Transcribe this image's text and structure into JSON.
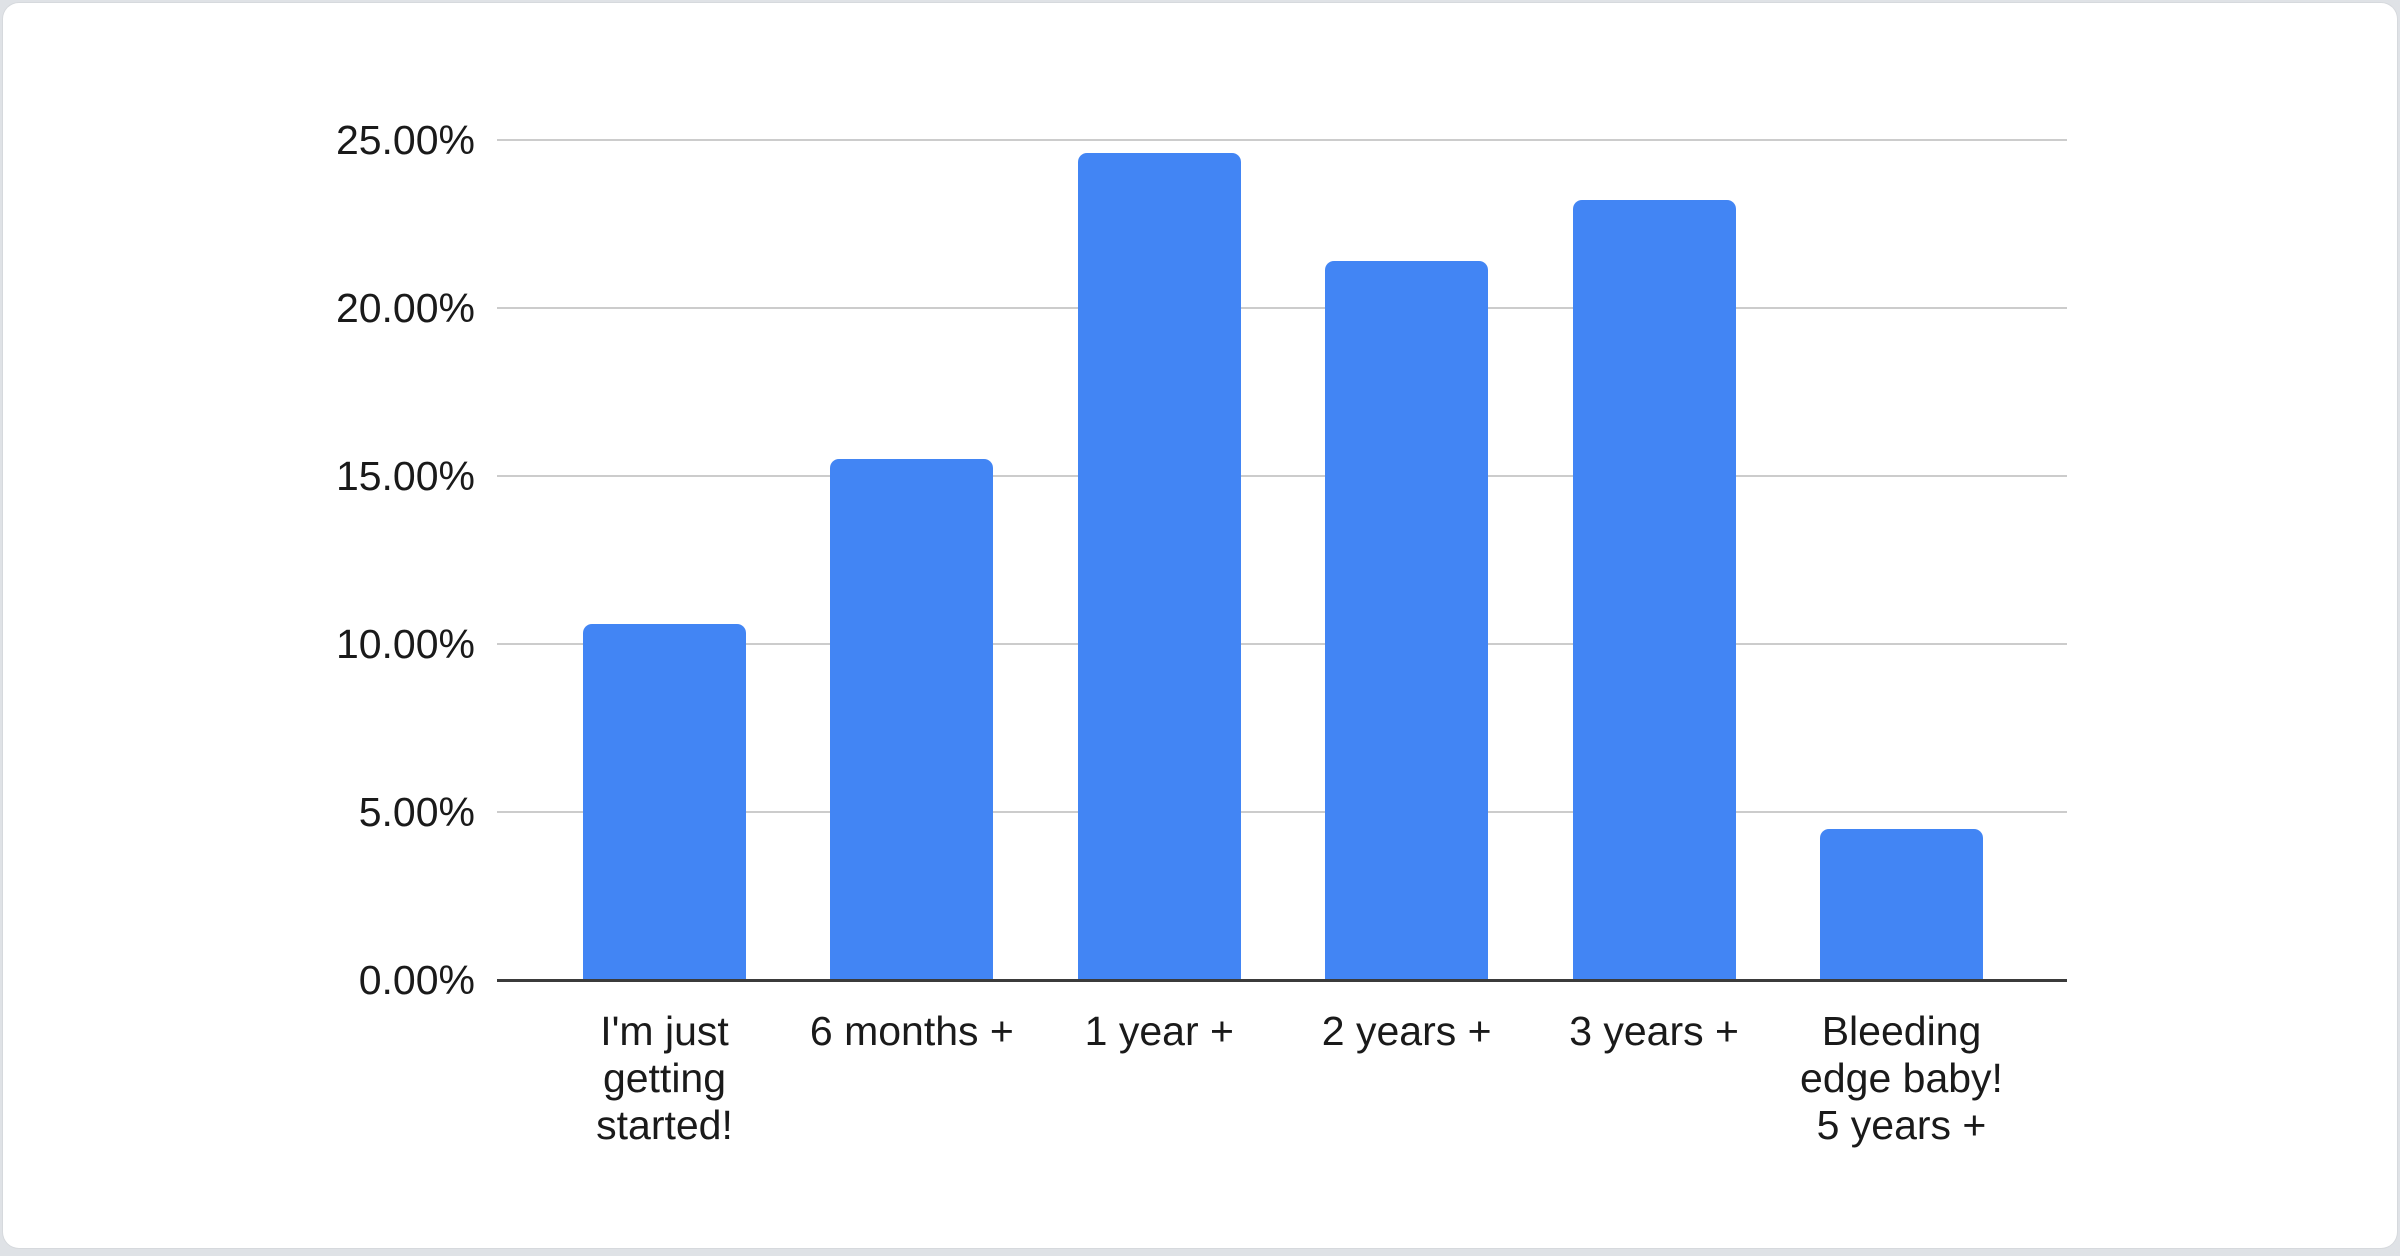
{
  "page": {
    "background_color": "#dfe2e6",
    "card_background_color": "#ffffff"
  },
  "chart_data": {
    "type": "bar",
    "title": "",
    "categories": [
      "I'm just getting started!",
      "6 months +",
      "1 year +",
      "2 years +",
      "3 years +",
      "Bleeding edge baby! 5 years +"
    ],
    "categories_wrapped": [
      [
        "I'm just",
        "getting",
        "started!"
      ],
      [
        "6 months +"
      ],
      [
        "1 year +"
      ],
      [
        "2 years +"
      ],
      [
        "3 years +"
      ],
      [
        "Bleeding",
        "edge baby!",
        "5 years +"
      ]
    ],
    "values": [
      10.6,
      15.5,
      24.6,
      21.4,
      23.2,
      4.5
    ],
    "value_unit": "%",
    "ylim": [
      0,
      25
    ],
    "ytick_step": 5,
    "ytick_labels": [
      "0.00%",
      "5.00%",
      "10.00%",
      "15.00%",
      "20.00%",
      "25.00%"
    ],
    "grid": true,
    "legend_position": "none",
    "bar_color": "#4285f4",
    "gridline_color": "#cccccc",
    "axis_line_color": "#3b3b3b",
    "label_color": "#1a1a1a"
  }
}
